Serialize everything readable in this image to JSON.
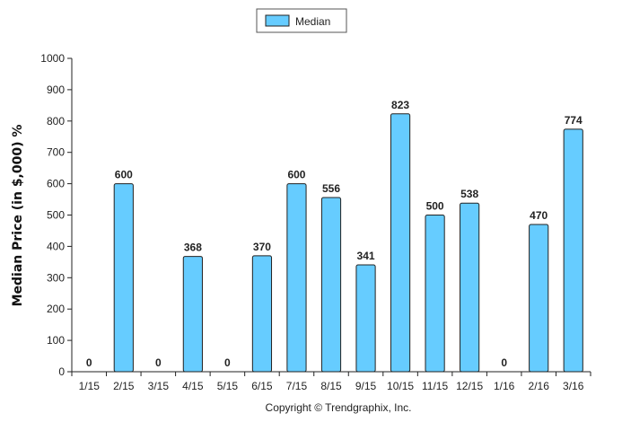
{
  "chart_data": {
    "type": "bar",
    "categories": [
      "1/15",
      "2/15",
      "3/15",
      "4/15",
      "5/15",
      "6/15",
      "7/15",
      "8/15",
      "9/15",
      "10/15",
      "11/15",
      "12/15",
      "1/16",
      "2/16",
      "3/16"
    ],
    "series": [
      {
        "name": "Median",
        "values": [
          0,
          600,
          0,
          368,
          0,
          370,
          600,
          556,
          341,
          823,
          500,
          538,
          0,
          470,
          774
        ]
      }
    ],
    "data_labels": [
      "0",
      "600",
      "0",
      "368",
      "0",
      "370",
      "600",
      "556",
      "341",
      "823",
      "500",
      "538",
      "0",
      "470",
      "774"
    ],
    "ylabel": "Median Price (in $,000) %",
    "ylim": [
      0,
      1000
    ],
    "yticks": [
      0,
      100,
      200,
      300,
      400,
      500,
      600,
      700,
      800,
      900,
      1000
    ],
    "ytick_labels": [
      "0",
      "100",
      "200",
      "300",
      "400",
      "500",
      "600",
      "700",
      "800",
      "900",
      "1000"
    ],
    "grid": false,
    "legend_position": "top-center",
    "bar_color": "#66ccff",
    "bar_edge_color": "#222222"
  },
  "footer": {
    "copyright": "Copyright © Trendgraphix, Inc."
  }
}
